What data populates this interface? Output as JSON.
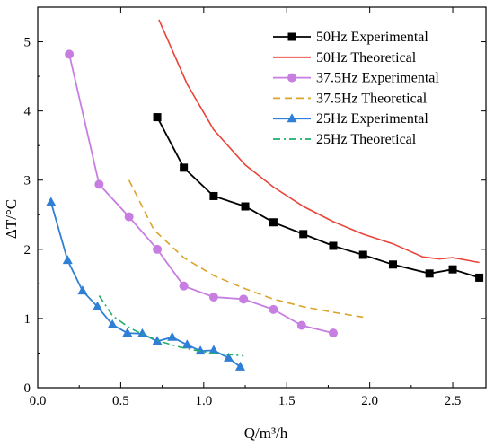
{
  "chart_data": {
    "type": "line",
    "xlabel": "Q/m³/h",
    "ylabel": "ΔT/°C",
    "xlim": [
      0,
      2.7
    ],
    "ylim": [
      0,
      5.5
    ],
    "xticks": [
      "0.0",
      "0.5",
      "1.0",
      "1.5",
      "2.0",
      "2.5"
    ],
    "xtick_values": [
      0,
      0.5,
      1.0,
      1.5,
      2.0,
      2.5
    ],
    "yticks": [
      "0",
      "1",
      "2",
      "3",
      "4",
      "5"
    ],
    "ytick_values": [
      0,
      1,
      2,
      3,
      4,
      5
    ],
    "legend_position": "top-right",
    "grid": false,
    "series": [
      {
        "name": "50Hz Experimental",
        "color": "#000000",
        "marker": "square",
        "dash": "solid",
        "x": [
          0.72,
          0.88,
          1.06,
          1.25,
          1.42,
          1.6,
          1.78,
          1.96,
          2.14,
          2.36,
          2.5,
          2.66
        ],
        "y": [
          3.91,
          3.18,
          2.77,
          2.62,
          2.39,
          2.22,
          2.05,
          1.92,
          1.78,
          1.65,
          1.71,
          1.59
        ]
      },
      {
        "name": "50Hz Theoretical",
        "color": "#e8443a",
        "marker": "none",
        "dash": "solid",
        "x": [
          0.73,
          0.9,
          1.06,
          1.25,
          1.42,
          1.6,
          1.78,
          1.96,
          2.14,
          2.32,
          2.42,
          2.5,
          2.66
        ],
        "y": [
          5.32,
          4.39,
          3.73,
          3.22,
          2.9,
          2.62,
          2.4,
          2.22,
          2.08,
          1.89,
          1.86,
          1.88,
          1.81
        ]
      },
      {
        "name": "37.5Hz Experimental",
        "color": "#c77ee0",
        "marker": "circle",
        "dash": "solid",
        "x": [
          0.19,
          0.37,
          0.55,
          0.72,
          0.88,
          1.06,
          1.24,
          1.42,
          1.59,
          1.78
        ],
        "y": [
          4.82,
          2.94,
          2.47,
          2.0,
          1.47,
          1.31,
          1.28,
          1.13,
          0.9,
          0.79
        ]
      },
      {
        "name": "37.5Hz Theoretical",
        "color": "#dba42b",
        "marker": "none",
        "dash": "dashed",
        "x": [
          0.55,
          0.7,
          0.88,
          1.06,
          1.25,
          1.42,
          1.6,
          1.78,
          1.96
        ],
        "y": [
          3.0,
          2.28,
          1.88,
          1.62,
          1.43,
          1.28,
          1.17,
          1.09,
          1.02
        ]
      },
      {
        "name": "25Hz Experimental",
        "color": "#2f7fd6",
        "marker": "triangle",
        "dash": "solid",
        "x": [
          0.08,
          0.18,
          0.27,
          0.36,
          0.45,
          0.54,
          0.63,
          0.72,
          0.81,
          0.9,
          0.98,
          1.06,
          1.15,
          1.22
        ],
        "y": [
          2.68,
          1.84,
          1.4,
          1.17,
          0.91,
          0.79,
          0.78,
          0.67,
          0.73,
          0.62,
          0.53,
          0.54,
          0.43,
          0.3
        ]
      },
      {
        "name": "25Hz Theoretical",
        "color": "#1fae6b",
        "marker": "none",
        "dash": "dashdot",
        "x": [
          0.37,
          0.45,
          0.55,
          0.65,
          0.75,
          0.85,
          0.95,
          1.05,
          1.15,
          1.24
        ],
        "y": [
          1.33,
          1.04,
          0.87,
          0.75,
          0.66,
          0.59,
          0.54,
          0.5,
          0.48,
          0.46
        ]
      }
    ]
  }
}
